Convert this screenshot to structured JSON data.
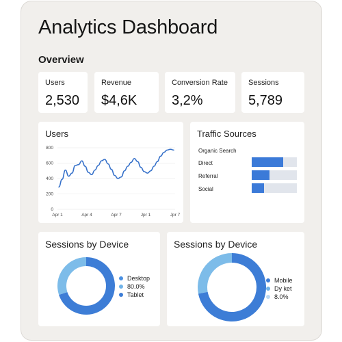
{
  "header": {
    "title": "Analytics Dashboard",
    "section": "Overview"
  },
  "kpis": [
    {
      "label": "Users",
      "value": "2,530"
    },
    {
      "label": "Revenue",
      "value": "$4,6K"
    },
    {
      "label": "Conversion Rate",
      "value": "3,2%"
    },
    {
      "label": "Sessions",
      "value": "5,789"
    }
  ],
  "users_chart": {
    "title": "Users",
    "chart_data": {
      "type": "line",
      "title": "Users",
      "xlabel": "",
      "ylabel": "",
      "x_tick_labels": [
        "Apr 1",
        "Apr 4",
        "Apr 7",
        "Jpr 1",
        "Jpr 7"
      ],
      "y_ticks": [
        "800",
        "600",
        "400",
        "200",
        "0"
      ],
      "ylim": [
        0,
        800
      ],
      "grid": true,
      "series": [
        {
          "values": [
            290,
            390,
            510,
            430,
            470,
            570,
            580,
            630,
            560,
            480,
            450,
            510,
            570,
            630,
            650,
            590,
            520,
            440,
            400,
            420,
            500,
            560,
            610,
            660,
            620,
            545,
            490,
            470,
            500,
            560,
            620,
            690,
            740,
            770,
            780,
            770
          ]
        }
      ]
    }
  },
  "traffic": {
    "title": "Traffic Sources",
    "sources": [
      {
        "label": "Organic Search",
        "value": null
      },
      {
        "label": "Direct",
        "value": 0.69
      },
      {
        "label": "Referral",
        "value": 0.4
      },
      {
        "label": "Social",
        "value": 0.28
      }
    ]
  },
  "device_left": {
    "title": "Sessions by Device",
    "legend": [
      {
        "label": "Desktop",
        "color": "#4a90e2"
      },
      {
        "label": "80.0%",
        "color": "#6fb2e8"
      },
      {
        "label": "Tablet",
        "color": "#3d7dd6"
      }
    ],
    "chart_data": {
      "type": "pie",
      "title": "Sessions by Device",
      "slices": [
        {
          "label": "Desktop",
          "value": 70,
          "color": "#3d7dd6"
        },
        {
          "label": "Tablet",
          "value": 30,
          "color": "#7dbce9"
        }
      ]
    }
  },
  "device_right": {
    "title": "Sessions by Device",
    "legend": [
      {
        "label": "Mobile",
        "color": "#3d7dd6"
      },
      {
        "label": "Dy ket",
        "color": "#6fb2e8"
      },
      {
        "label": "8.0%",
        "color": "#bcd9f3"
      }
    ],
    "chart_data": {
      "type": "pie",
      "title": "Sessions by Device",
      "slices": [
        {
          "label": "Mobile",
          "value": 72,
          "color": "#3d7dd6"
        },
        {
          "label": "Dy ket",
          "value": 28,
          "color": "#7dbce9"
        }
      ]
    }
  }
}
